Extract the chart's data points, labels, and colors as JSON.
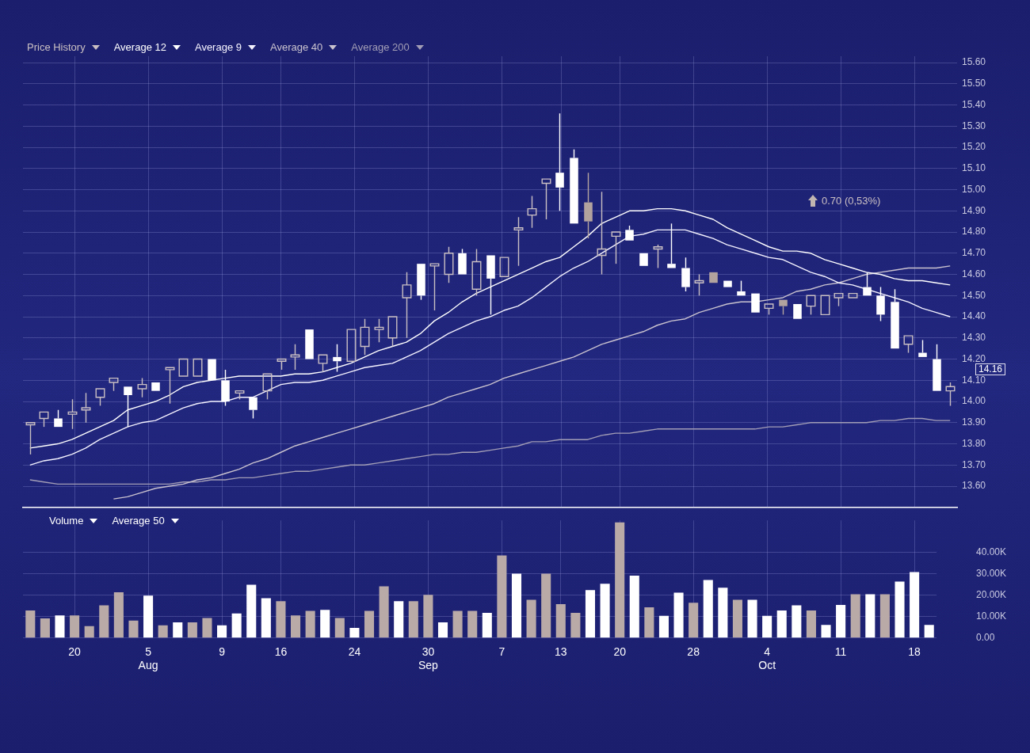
{
  "chart_data": [
    {
      "type": "candlestick",
      "categories": [
        null,
        null,
        null,
        null,
        null,
        null,
        null,
        null,
        null,
        null,
        null,
        null,
        null,
        null,
        null,
        null,
        null,
        null,
        null,
        null,
        null,
        null,
        null,
        null,
        null,
        null,
        null,
        null,
        null,
        null,
        null,
        null,
        null,
        null,
        null,
        null,
        null,
        null,
        null,
        null,
        null,
        null,
        null,
        null,
        null,
        null,
        null,
        null,
        null,
        null,
        null,
        null,
        null,
        null,
        null,
        null,
        null,
        null,
        null,
        null,
        null,
        null,
        null,
        null,
        null,
        null,
        null
      ],
      "series": [
        {
          "name": "Price History",
          "type": "candlestick",
          "color": "#c9bfc3",
          "colors": [
            "#c9bfc3",
            "#c9bfc3",
            "#ffffff",
            "#c9bfc3",
            "#c9bfc3",
            "#c9bfc3",
            "#c9bfc3",
            "#ffffff",
            "#c9bfc3",
            "#ffffff",
            "#c9bfc3",
            "#c9bfc3",
            "#c9bfc3",
            "#ffffff",
            "#ffffff",
            "#c9bfc3",
            "#ffffff",
            "#c9bfc3",
            "#c9bfc3",
            "#c9bfc3",
            "#ffffff",
            "#c9bfc3",
            "#ffffff",
            "#c9bfc3",
            "#c9bfc3",
            "#c9bfc3",
            "#c9bfc3",
            "#c9bfc3",
            "#ffffff",
            "#c9bfc3",
            "#c9bfc3",
            "#ffffff",
            "#c9bfc3",
            "#ffffff",
            "#c9bfc3",
            "#c9bfc3",
            "#c9bfc3",
            "#c9bfc3",
            "#ffffff",
            "#ffffff",
            "#b3a39f",
            "#c9bfc3",
            "#c9bfc3",
            "#ffffff",
            "#ffffff",
            "#c9bfc3",
            "#ffffff",
            "#ffffff",
            "#c9bfc3",
            "#b3a39f",
            "#ffffff",
            "#ffffff",
            "#ffffff",
            "#c9bfc3",
            "#b3a39f",
            "#ffffff",
            "#c9bfc3",
            "#c9bfc3",
            "#c9bfc3",
            "#c9bfc3",
            "#ffffff",
            "#ffffff",
            "#ffffff",
            "#c9bfc3",
            "#ffffff",
            "#ffffff",
            "#c9bfc3"
          ],
          "ohlc": [
            [
              13.89,
              13.9,
              13.75,
              13.9
            ],
            [
              13.92,
              13.95,
              13.88,
              13.95
            ],
            [
              13.92,
              13.96,
              13.88,
              13.88
            ],
            [
              13.94,
              14.01,
              13.87,
              13.95
            ],
            [
              13.96,
              14.04,
              13.9,
              13.97
            ],
            [
              14.02,
              14.06,
              13.98,
              14.06
            ],
            [
              14.09,
              14.11,
              14.05,
              14.11
            ],
            [
              14.07,
              14.07,
              13.88,
              14.03
            ],
            [
              14.06,
              14.11,
              14.02,
              14.08
            ],
            [
              14.09,
              14.09,
              14.05,
              14.05
            ],
            [
              14.15,
              14.16,
              13.99,
              14.16
            ],
            [
              14.12,
              14.2,
              14.12,
              14.2
            ],
            [
              14.12,
              14.2,
              14.12,
              14.2
            ],
            [
              14.2,
              14.2,
              14.1,
              14.1
            ],
            [
              14.1,
              14.15,
              13.98,
              14.0
            ],
            [
              14.04,
              14.05,
              14.01,
              14.05
            ],
            [
              14.02,
              14.02,
              13.92,
              13.96
            ],
            [
              14.05,
              14.13,
              14.01,
              14.13
            ],
            [
              14.19,
              14.2,
              14.15,
              14.2
            ],
            [
              14.21,
              14.27,
              14.15,
              14.22
            ],
            [
              14.34,
              14.34,
              14.2,
              14.2
            ],
            [
              14.18,
              14.22,
              14.14,
              14.22
            ],
            [
              14.21,
              14.27,
              14.14,
              14.19
            ],
            [
              14.19,
              14.34,
              14.19,
              14.34
            ],
            [
              14.26,
              14.39,
              14.22,
              14.35
            ],
            [
              14.34,
              14.39,
              14.28,
              14.35
            ],
            [
              14.3,
              14.4,
              14.26,
              14.4
            ],
            [
              14.49,
              14.61,
              14.3,
              14.55
            ],
            [
              14.65,
              14.65,
              14.48,
              14.5
            ],
            [
              14.64,
              14.65,
              14.43,
              14.65
            ],
            [
              14.6,
              14.73,
              14.56,
              14.7
            ],
            [
              14.7,
              14.72,
              14.6,
              14.6
            ],
            [
              14.53,
              14.72,
              14.5,
              14.66
            ],
            [
              14.69,
              14.69,
              14.41,
              14.58
            ],
            [
              14.59,
              14.68,
              14.59,
              14.68
            ],
            [
              14.81,
              14.87,
              14.64,
              14.82
            ],
            [
              14.88,
              14.97,
              14.82,
              14.91
            ],
            [
              15.03,
              15.05,
              14.86,
              15.05
            ],
            [
              15.08,
              15.36,
              14.9,
              15.01
            ],
            [
              15.15,
              15.19,
              14.84,
              14.84
            ],
            [
              14.94,
              15.08,
              14.77,
              14.85
            ],
            [
              14.69,
              14.99,
              14.6,
              14.72
            ],
            [
              14.78,
              14.8,
              14.65,
              14.8
            ],
            [
              14.81,
              14.83,
              14.76,
              14.76
            ],
            [
              14.7,
              14.7,
              14.64,
              14.64
            ],
            [
              14.72,
              14.74,
              14.63,
              14.73
            ],
            [
              14.65,
              14.84,
              14.63,
              14.63
            ],
            [
              14.63,
              14.68,
              14.52,
              14.54
            ],
            [
              14.56,
              14.6,
              14.5,
              14.57
            ],
            [
              14.61,
              14.61,
              14.56,
              14.56
            ],
            [
              14.57,
              14.57,
              14.54,
              14.54
            ],
            [
              14.52,
              14.57,
              14.5,
              14.5
            ],
            [
              14.51,
              14.51,
              14.42,
              14.42
            ],
            [
              14.44,
              14.46,
              14.41,
              14.46
            ],
            [
              14.48,
              14.48,
              14.41,
              14.45
            ],
            [
              14.46,
              14.46,
              14.39,
              14.39
            ],
            [
              14.45,
              14.5,
              14.41,
              14.5
            ],
            [
              14.41,
              14.5,
              14.41,
              14.5
            ],
            [
              14.49,
              14.51,
              14.45,
              14.51
            ],
            [
              14.49,
              14.51,
              14.49,
              14.51
            ],
            [
              14.54,
              14.61,
              14.5,
              14.5
            ],
            [
              14.5,
              14.54,
              14.38,
              14.41
            ],
            [
              14.47,
              14.53,
              14.25,
              14.25
            ],
            [
              14.27,
              14.31,
              14.23,
              14.31
            ],
            [
              14.23,
              14.29,
              14.21,
              14.21
            ],
            [
              14.2,
              14.27,
              14.05,
              14.05
            ],
            [
              14.05,
              14.09,
              13.98,
              14.07
            ]
          ]
        },
        {
          "name": "Average 12",
          "type": "line",
          "color": "#ffffff",
          "values": [
            13.78,
            13.79,
            13.8,
            13.82,
            13.85,
            13.88,
            13.91,
            13.96,
            13.98,
            14.0,
            14.03,
            14.07,
            14.09,
            14.1,
            14.11,
            14.12,
            14.12,
            14.12,
            14.12,
            14.13,
            14.13,
            14.14,
            14.16,
            14.18,
            14.21,
            14.24,
            14.26,
            14.28,
            14.32,
            14.38,
            14.42,
            14.47,
            14.51,
            14.54,
            14.57,
            14.6,
            14.63,
            14.66,
            14.68,
            14.73,
            14.78,
            14.84,
            14.87,
            14.9,
            14.9,
            14.91,
            14.91,
            14.9,
            14.88,
            14.86,
            14.82,
            14.79,
            14.76,
            14.73,
            14.71,
            14.71,
            14.7,
            14.67,
            14.65,
            14.63,
            14.61,
            14.6,
            14.58,
            14.57,
            14.57,
            14.56,
            14.55
          ]
        },
        {
          "name": "Average 9",
          "type": "line",
          "color": "#f4f2ff",
          "values": [
            13.7,
            13.72,
            13.73,
            13.75,
            13.78,
            13.82,
            13.85,
            13.88,
            13.9,
            13.91,
            13.94,
            13.97,
            13.99,
            14.0,
            14.0,
            14.02,
            14.02,
            14.05,
            14.08,
            14.09,
            14.09,
            14.1,
            14.12,
            14.14,
            14.16,
            14.17,
            14.18,
            14.21,
            14.24,
            14.28,
            14.32,
            14.35,
            14.38,
            14.4,
            14.43,
            14.45,
            14.49,
            14.54,
            14.59,
            14.63,
            14.66,
            14.7,
            14.74,
            14.78,
            14.79,
            14.81,
            14.81,
            14.81,
            14.79,
            14.77,
            14.74,
            14.72,
            14.7,
            14.68,
            14.67,
            14.64,
            14.61,
            14.59,
            14.56,
            14.55,
            14.53,
            14.51,
            14.49,
            14.47,
            14.44,
            14.42,
            14.4
          ]
        },
        {
          "name": "Average 40",
          "type": "line",
          "color": "#c9c2cf",
          "values": [
            null,
            null,
            null,
            null,
            null,
            null,
            13.54,
            13.55,
            13.57,
            13.59,
            13.6,
            13.61,
            13.63,
            13.64,
            13.66,
            13.68,
            13.71,
            13.73,
            13.76,
            13.79,
            13.81,
            13.83,
            13.85,
            13.87,
            13.89,
            13.91,
            13.93,
            13.95,
            13.97,
            13.99,
            14.02,
            14.04,
            14.06,
            14.08,
            14.11,
            14.13,
            14.15,
            14.17,
            14.19,
            14.21,
            14.24,
            14.27,
            14.29,
            14.31,
            14.33,
            14.36,
            14.38,
            14.39,
            14.42,
            14.44,
            14.46,
            14.47,
            14.47,
            14.48,
            14.49,
            14.52,
            14.53,
            14.55,
            14.56,
            14.58,
            14.6,
            14.61,
            14.62,
            14.63,
            14.63,
            14.63,
            14.64
          ]
        },
        {
          "name": "Average 200",
          "type": "line",
          "color": "#a29db6",
          "values": [
            13.63,
            13.62,
            13.61,
            13.61,
            13.61,
            13.61,
            13.61,
            13.61,
            13.61,
            13.61,
            13.61,
            13.62,
            13.62,
            13.63,
            13.63,
            13.64,
            13.64,
            13.65,
            13.66,
            13.67,
            13.67,
            13.68,
            13.69,
            13.7,
            13.7,
            13.71,
            13.72,
            13.73,
            13.74,
            13.75,
            13.75,
            13.76,
            13.76,
            13.77,
            13.78,
            13.79,
            13.81,
            13.81,
            13.82,
            13.82,
            13.82,
            13.84,
            13.85,
            13.85,
            13.86,
            13.87,
            13.87,
            13.87,
            13.87,
            13.87,
            13.87,
            13.87,
            13.87,
            13.88,
            13.88,
            13.89,
            13.9,
            13.9,
            13.9,
            13.9,
            13.9,
            13.91,
            13.91,
            13.92,
            13.92,
            13.91,
            13.91
          ]
        }
      ],
      "ylim": [
        13.5,
        15.63
      ],
      "yticks": [
        {
          "value": 13.6,
          "label": "13.60"
        },
        {
          "value": 13.7,
          "label": "13.70"
        },
        {
          "value": 13.8,
          "label": "13.80"
        },
        {
          "value": 13.9,
          "label": "13.90"
        },
        {
          "value": 14.0,
          "label": "14.00"
        },
        {
          "value": 14.1,
          "label": "14.10"
        },
        {
          "value": 14.2,
          "label": "14.20"
        },
        {
          "value": 14.3,
          "label": "14.30"
        },
        {
          "value": 14.4,
          "label": "14.40"
        },
        {
          "value": 14.5,
          "label": "14.50"
        },
        {
          "value": 14.6,
          "label": "14.60"
        },
        {
          "value": 14.7,
          "label": "14.70"
        },
        {
          "value": 14.8,
          "label": "14.80"
        },
        {
          "value": 14.9,
          "label": "14.90"
        },
        {
          "value": 15.0,
          "label": "15.00"
        },
        {
          "value": 15.1,
          "label": "15.10"
        },
        {
          "value": 15.2,
          "label": "15.20"
        },
        {
          "value": 15.3,
          "label": "15.30"
        },
        {
          "value": 15.4,
          "label": "15.40"
        },
        {
          "value": 15.5,
          "label": "15.50"
        },
        {
          "value": 15.6,
          "label": "15.60"
        }
      ],
      "grid": true,
      "legend": "top left",
      "tick_labels": "y",
      "annotations": [
        "0.70  (0,53%)",
        "14.16"
      ]
    },
    {
      "type": "bar",
      "categories": [
        null,
        null,
        null,
        "20",
        null,
        null,
        null,
        null,
        "5\nAug",
        null,
        null,
        null,
        null,
        "9",
        null,
        null,
        null,
        "16",
        null,
        null,
        null,
        null,
        "24",
        null,
        null,
        null,
        null,
        "30\nSep",
        null,
        null,
        null,
        null,
        "7",
        null,
        null,
        null,
        "13",
        null,
        null,
        null,
        "20",
        null,
        null,
        null,
        null,
        "28",
        null,
        null,
        null,
        null,
        "4\nOct",
        null,
        null,
        null,
        null,
        "11",
        null,
        null,
        null,
        null,
        "18",
        null
      ],
      "series": [
        {
          "name": "Volume",
          "color": "#ffffff",
          "colors": [
            "#b9aaa8",
            "#b9aaa8",
            "#ffffff",
            "#b9aaa8",
            "#b9aaa8",
            "#b9aaa8",
            "#b9aaa8",
            "#b9aaa8",
            "#ffffff",
            "#b9aaa8",
            "#ffffff",
            "#b9aaa8",
            "#b9aaa8",
            "#ffffff",
            "#ffffff",
            "#ffffff",
            "#ffffff",
            "#b9aaa8",
            "#b9aaa8",
            "#b9aaa8",
            "#ffffff",
            "#b9aaa8",
            "#ffffff",
            "#b9aaa8",
            "#b9aaa8",
            "#ffffff",
            "#b9aaa8",
            "#b9aaa8",
            "#ffffff",
            "#b9aaa8",
            "#b9aaa8",
            "#ffffff",
            "#b9aaa8",
            "#ffffff",
            "#b9aaa8",
            "#b9aaa8",
            "#b9aaa8",
            "#b9aaa8",
            "#ffffff",
            "#ffffff",
            "#b9aaa8",
            "#ffffff",
            "#b9aaa8",
            "#ffffff",
            "#ffffff",
            "#b9aaa8",
            "#ffffff",
            "#ffffff",
            "#b9aaa8",
            "#ffffff",
            "#ffffff",
            "#ffffff",
            "#ffffff",
            "#b9aaa8",
            "#ffffff",
            "#ffffff",
            "#b9aaa8",
            "#ffffff",
            "#b9aaa8",
            "#ffffff",
            "#ffffff",
            "#ffffff"
          ],
          "values": [
            12900,
            9200,
            10600,
            10600,
            5600,
            15300,
            21400,
            8200,
            19800,
            5900,
            7300,
            7300,
            9400,
            5900,
            11500,
            24900,
            18600,
            17200,
            10600,
            12700,
            13200,
            9400,
            4700,
            12700,
            24200,
            17200,
            17200,
            20200,
            7300,
            12700,
            12700,
            11800,
            38600,
            30100,
            17900,
            30100,
            15800,
            11800,
            22400,
            25400,
            54100,
            29200,
            14400,
            10400,
            21200,
            16500,
            27100,
            23500,
            17900,
            17900,
            10400,
            12900,
            15300,
            12900,
            6100,
            15500,
            20500,
            20500,
            20500,
            26400,
            30800,
            6100
          ]
        }
      ],
      "ylim": [
        0,
        55000
      ],
      "yticks": [
        {
          "value": 0,
          "label": "0.00"
        },
        {
          "value": 10000,
          "label": "10.00K"
        },
        {
          "value": 20000,
          "label": "20.00K"
        },
        {
          "value": 30000,
          "label": "30.00K"
        },
        {
          "value": 40000,
          "label": "40.00K"
        }
      ],
      "grid": true,
      "legend": "top left",
      "annotations": [
        "Average 50"
      ]
    }
  ]
}
